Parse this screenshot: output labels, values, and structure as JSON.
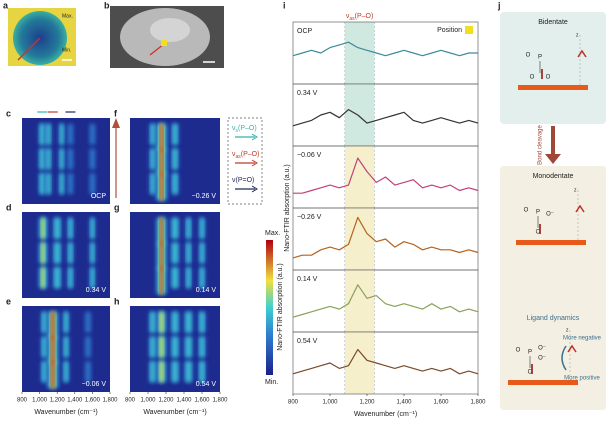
{
  "panel_a": {
    "letter": "a",
    "max": "Max.",
    "min": "Min."
  },
  "panel_b": {
    "letter": "b"
  },
  "heatmaps": {
    "panels": [
      {
        "letter": "c",
        "label": "OCP"
      },
      {
        "letter": "d",
        "label": "0.34 V"
      },
      {
        "letter": "e",
        "label": "−0.06 V"
      },
      {
        "letter": "f",
        "label": "−0.26 V"
      },
      {
        "letter": "g",
        "label": "0.14 V"
      },
      {
        "letter": "h",
        "label": "0.54 V"
      }
    ],
    "xlim": [
      800,
      1800
    ],
    "xticks": [
      800,
      {
        "value": 1000,
        "label": "1,000"
      },
      {
        "value": 1200,
        "label": "1,200"
      },
      {
        "value": 1400,
        "label": "1,400"
      },
      {
        "value": 1600,
        "label": "1,600"
      },
      {
        "value": 1800,
        "label": "1,800"
      }
    ],
    "xlabel": "Wavenumber (cm⁻¹)",
    "legend": [
      {
        "sym": "ν",
        "sub": "s",
        "rest": "(P–O)",
        "color": "#2fb5ad"
      },
      {
        "sym": "ν",
        "sub": "as",
        "rest": "(P–O)",
        "color": "#c0392b"
      },
      {
        "sym": "ν(P=O)",
        "color": "#1f2a55"
      }
    ],
    "colorbar": {
      "max": "Max.",
      "min": "Min.",
      "label": "Nano-FTIR absorption (a.u.)"
    }
  },
  "chart_data": {
    "type": "line",
    "letter": "i",
    "annotation": {
      "sym": "ν",
      "sub": "as",
      "rest": "(P–O)"
    },
    "legend_label": "Position",
    "legend_color": "#f0e020",
    "band": [
      1080,
      1240
    ],
    "ylabel": "Nano-FTIR absorption (a.u.)",
    "xlabel": "Wavenumber (cm⁻¹)",
    "xlim": [
      800,
      1800
    ],
    "ylim": [
      0,
      1
    ],
    "xticks": [
      800,
      {
        "value": 1000,
        "label": "1,000"
      },
      {
        "value": 1200,
        "label": "1,200"
      },
      {
        "value": 1400,
        "label": "1,400"
      },
      {
        "value": 1600,
        "label": "1,600"
      },
      {
        "value": 1800,
        "label": "1,800"
      }
    ],
    "x": [
      800,
      850,
      900,
      950,
      1000,
      1050,
      1100,
      1150,
      1200,
      1250,
      1300,
      1350,
      1400,
      1450,
      1500,
      1550,
      1600,
      1650,
      1700,
      1750,
      1800
    ],
    "series": [
      {
        "name": "OCP",
        "color": "#3d8b98",
        "band_color": "#cfe8e0",
        "values": [
          0.45,
          0.5,
          0.55,
          0.5,
          0.6,
          0.65,
          0.7,
          0.6,
          0.55,
          0.5,
          0.45,
          0.5,
          0.55,
          0.5,
          0.45,
          0.5,
          0.55,
          0.5,
          0.45,
          0.5,
          0.5
        ]
      },
      {
        "name": "0.34 V",
        "color": "#333333",
        "band_color": "#cfe8e0",
        "values": [
          0.3,
          0.35,
          0.4,
          0.5,
          0.55,
          0.45,
          0.6,
          0.5,
          0.35,
          0.4,
          0.45,
          0.5,
          0.55,
          0.4,
          0.35,
          0.4,
          0.45,
          0.4,
          0.35,
          0.4,
          0.35
        ]
      },
      {
        "name": "−0.06 V",
        "color": "#c2407a",
        "band_color": "#f6efcc",
        "values": [
          0.2,
          0.2,
          0.25,
          0.3,
          0.35,
          0.3,
          0.35,
          0.85,
          0.6,
          0.4,
          0.5,
          0.35,
          0.4,
          0.45,
          0.3,
          0.35,
          0.3,
          0.35,
          0.25,
          0.3,
          0.25
        ]
      },
      {
        "name": "−0.26 V",
        "color": "#b5621f",
        "band_color": "#f6efcc",
        "values": [
          0.15,
          0.2,
          0.2,
          0.3,
          0.35,
          0.3,
          0.4,
          0.9,
          0.6,
          0.45,
          0.5,
          0.35,
          0.45,
          0.4,
          0.3,
          0.35,
          0.3,
          0.3,
          0.25,
          0.3,
          0.25
        ]
      },
      {
        "name": "0.14 V",
        "color": "#8aa15a",
        "band_color": "#f6efcc",
        "values": [
          0.2,
          0.25,
          0.3,
          0.35,
          0.4,
          0.35,
          0.45,
          0.8,
          0.55,
          0.6,
          0.45,
          0.4,
          0.45,
          0.4,
          0.35,
          0.45,
          0.35,
          0.4,
          0.3,
          0.35,
          0.3
        ]
      },
      {
        "name": "0.54 V",
        "color": "#7a4a2a",
        "band_color": "#f6efcc",
        "values": [
          0.3,
          0.35,
          0.4,
          0.45,
          0.5,
          0.4,
          0.45,
          0.75,
          0.55,
          0.5,
          0.45,
          0.4,
          0.45,
          0.4,
          0.35,
          0.4,
          0.35,
          0.4,
          0.3,
          0.35,
          0.3
        ]
      }
    ]
  },
  "panel_j": {
    "letter": "j",
    "top_title": "Bidentate",
    "arrow_label": "Bond cleavage",
    "bottom_title": "Monodentate",
    "dynamics_title": "Ligand dynamics",
    "more_negative": "More negative",
    "more_positive": "More positive",
    "z": "z",
    "bidentate_atoms": [
      "O",
      "P",
      "O",
      "O"
    ],
    "monodentate_atoms": [
      "O",
      "P",
      "O⁻",
      "O"
    ],
    "dynamics_atoms": [
      "O",
      "P",
      "O⁻",
      "O⁻",
      "O"
    ]
  }
}
